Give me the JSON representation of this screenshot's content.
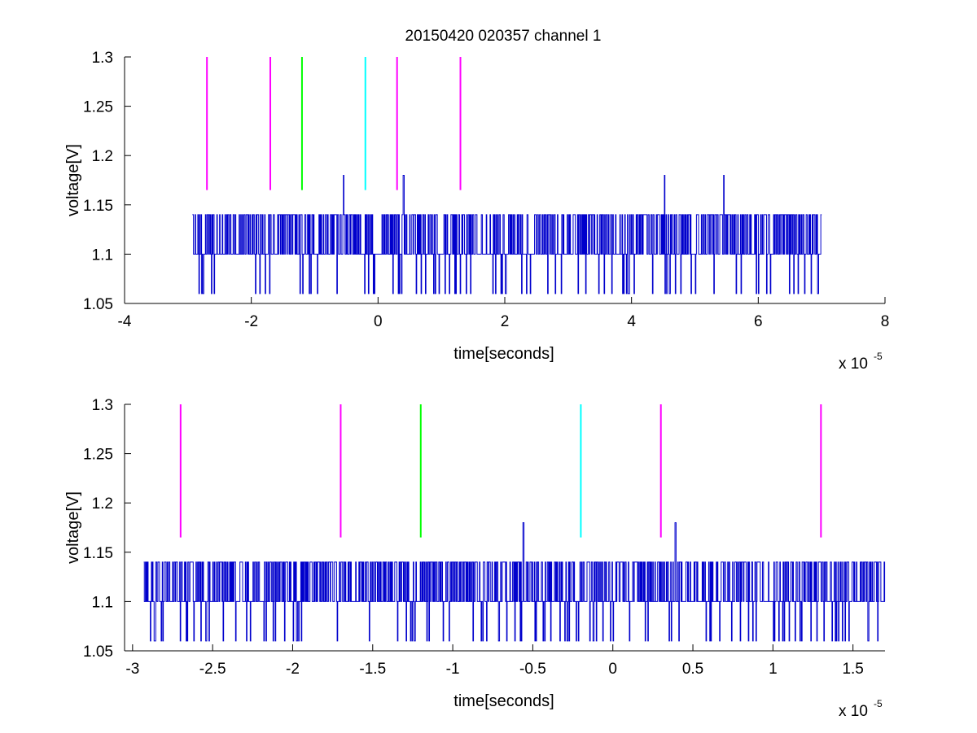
{
  "figure": {
    "title": "20150420 020357 channel 1"
  },
  "chart_data": [
    {
      "type": "line",
      "title": "20150420 020357 channel 1",
      "xlabel": "time[seconds]",
      "ylabel": "voltage[V]",
      "x_multiplier": "x 10",
      "x_exponent": "-5",
      "xlim": [
        -4,
        8
      ],
      "ylim": [
        1.05,
        1.3
      ],
      "xticks": [
        -4,
        -2,
        0,
        2,
        4,
        6,
        8
      ],
      "xtick_labels": [
        "-4",
        "-2",
        "0",
        "2",
        "4",
        "6",
        "8"
      ],
      "yticks": [
        1.05,
        1.1,
        1.15,
        1.2,
        1.25,
        1.3
      ],
      "ytick_labels": [
        "1.05",
        "1.1",
        "1.15",
        "1.2",
        "1.25",
        "1.3"
      ],
      "grid": false,
      "signal": {
        "color": "#0000cc",
        "x_start": -2.93,
        "x_end": 7.0,
        "levels": [
          1.06,
          1.1,
          1.14,
          1.18
        ],
        "baseline": 1.1,
        "peaks": [
          [
            -0.55,
            1.18
          ],
          [
            0.4,
            1.18
          ],
          [
            4.52,
            1.18
          ],
          [
            5.45,
            1.18
          ]
        ]
      },
      "markers": [
        {
          "x": -2.7,
          "color": "#ff00ff",
          "y_from": 1.165,
          "y_to": 1.3
        },
        {
          "x": -1.7,
          "color": "#ff00ff",
          "y_from": 1.165,
          "y_to": 1.3
        },
        {
          "x": -1.2,
          "color": "#00ff00",
          "y_from": 1.165,
          "y_to": 1.3
        },
        {
          "x": -0.2,
          "color": "#00ffff",
          "y_from": 1.165,
          "y_to": 1.3
        },
        {
          "x": 0.3,
          "color": "#ff00ff",
          "y_from": 1.165,
          "y_to": 1.3
        },
        {
          "x": 1.3,
          "color": "#ff00ff",
          "y_from": 1.165,
          "y_to": 1.3
        }
      ]
    },
    {
      "type": "line",
      "title": "",
      "xlabel": "time[seconds]",
      "ylabel": "voltage[V]",
      "x_multiplier": "x 10",
      "x_exponent": "-5",
      "xlim": [
        -3.05,
        1.7
      ],
      "ylim": [
        1.05,
        1.3
      ],
      "xticks": [
        -3,
        -2.5,
        -2,
        -1.5,
        -1,
        -0.5,
        0,
        0.5,
        1,
        1.5
      ],
      "xtick_labels": [
        "-3",
        "-2.5",
        "-2",
        "-1.5",
        "-1",
        "-0.5",
        "0",
        "0.5",
        "1",
        "1.5"
      ],
      "yticks": [
        1.05,
        1.1,
        1.15,
        1.2,
        1.25,
        1.3
      ],
      "ytick_labels": [
        "1.05",
        "1.1",
        "1.15",
        "1.2",
        "1.25",
        "1.3"
      ],
      "grid": false,
      "signal": {
        "color": "#0000cc",
        "x_start": -2.93,
        "x_end": 1.7,
        "levels": [
          1.06,
          1.1,
          1.14,
          1.18
        ],
        "baseline": 1.1,
        "peaks": [
          [
            -0.56,
            1.18
          ],
          [
            0.39,
            1.18
          ]
        ]
      },
      "markers": [
        {
          "x": -2.7,
          "color": "#ff00ff",
          "y_from": 1.165,
          "y_to": 1.3
        },
        {
          "x": -1.7,
          "color": "#ff00ff",
          "y_from": 1.165,
          "y_to": 1.3
        },
        {
          "x": -1.2,
          "color": "#00ff00",
          "y_from": 1.165,
          "y_to": 1.3
        },
        {
          "x": -0.2,
          "color": "#00ffff",
          "y_from": 1.165,
          "y_to": 1.3
        },
        {
          "x": 0.3,
          "color": "#ff00ff",
          "y_from": 1.165,
          "y_to": 1.3
        },
        {
          "x": 1.3,
          "color": "#ff00ff",
          "y_from": 1.165,
          "y_to": 1.3
        }
      ]
    }
  ]
}
